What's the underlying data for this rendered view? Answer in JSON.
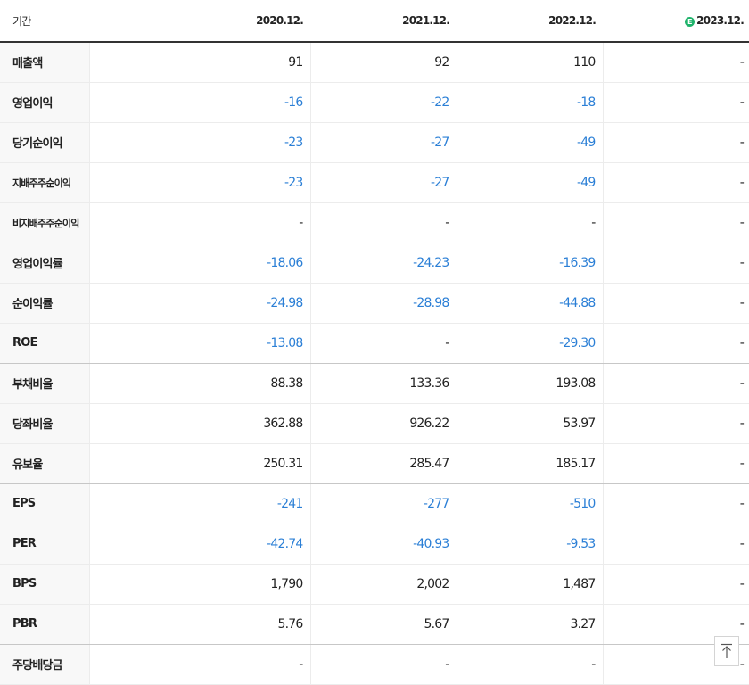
{
  "header": {
    "label": "기간",
    "periods": [
      "2020.12.",
      "2021.12.",
      "2022.12.",
      "2023.12."
    ],
    "estimate_mark": "E"
  },
  "rows": [
    {
      "label": "매출액",
      "values": [
        "91",
        "92",
        "110",
        "-"
      ]
    },
    {
      "label": "영업이익",
      "values": [
        "-16",
        "-22",
        "-18",
        "-"
      ]
    },
    {
      "label": "당기순이익",
      "values": [
        "-23",
        "-27",
        "-49",
        "-"
      ]
    },
    {
      "label": "지배주주순이익",
      "values": [
        "-23",
        "-27",
        "-49",
        "-"
      ]
    },
    {
      "label": "비지배주주순이익",
      "values": [
        "-",
        "-",
        "-",
        "-"
      ]
    },
    {
      "label": "영업이익률",
      "values": [
        "-18.06",
        "-24.23",
        "-16.39",
        "-"
      ]
    },
    {
      "label": "순이익률",
      "values": [
        "-24.98",
        "-28.98",
        "-44.88",
        "-"
      ]
    },
    {
      "label": "ROE",
      "values": [
        "-13.08",
        "-",
        "-29.30",
        "-"
      ]
    },
    {
      "label": "부채비율",
      "values": [
        "88.38",
        "133.36",
        "193.08",
        "-"
      ]
    },
    {
      "label": "당좌비율",
      "values": [
        "362.88",
        "926.22",
        "53.97",
        "-"
      ]
    },
    {
      "label": "유보율",
      "values": [
        "250.31",
        "285.47",
        "185.17",
        "-"
      ]
    },
    {
      "label": "EPS",
      "values": [
        "-241",
        "-277",
        "-510",
        "-"
      ]
    },
    {
      "label": "PER",
      "values": [
        "-42.74",
        "-40.93",
        "-9.53",
        "-"
      ]
    },
    {
      "label": "BPS",
      "values": [
        "1,790",
        "2,002",
        "1,487",
        "-"
      ]
    },
    {
      "label": "PBR",
      "values": [
        "5.76",
        "5.67",
        "3.27",
        "-"
      ]
    },
    {
      "label": "주당배당금",
      "values": [
        "-",
        "-",
        "-",
        "-"
      ]
    }
  ],
  "colors": {
    "negative": "#2b7fd6",
    "estimate_badge": "#1fb36b",
    "label_background": "#f8f8f8"
  },
  "top_button": {
    "icon": "arrow-up-to-top-icon"
  }
}
